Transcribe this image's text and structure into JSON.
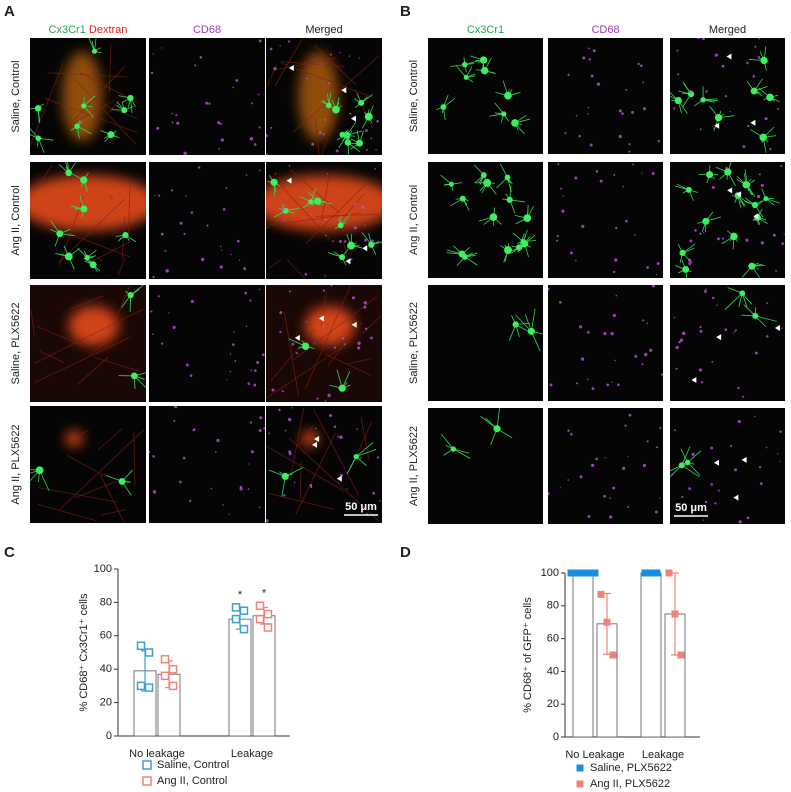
{
  "panels": [
    {
      "label": "A",
      "columns": [
        [
          {
            "text": "Cx3Cr1",
            "color": "#1fa84a"
          },
          {
            "text": "Dextran",
            "color": "#e0201c"
          }
        ],
        [
          {
            "text": "CD68",
            "color": "#9b3fbf"
          }
        ],
        [
          {
            "text": "Merged",
            "color": "#222222"
          }
        ]
      ],
      "rows": [
        "Saline, Control",
        "Ang II, Control",
        "Saline, PLX5622",
        "Ang II, PLX5622"
      ],
      "scale_bar": "50 μm"
    },
    {
      "label": "B",
      "columns": [
        [
          {
            "text": "Cx3Cr1",
            "color": "#1fa84a"
          }
        ],
        [
          {
            "text": "CD68",
            "color": "#9b3fbf"
          }
        ],
        [
          {
            "text": "Merged",
            "color": "#222222"
          }
        ]
      ],
      "rows": [
        "Saline, Control",
        "Ang II, Control",
        "Saline, PLX5622",
        "Ang II, PLX5622"
      ],
      "scale_bar": "50 μm"
    }
  ],
  "chart_data": [
    {
      "label": "C",
      "type": "bar",
      "ylabel": "% CD68⁺ Cx3Cr1⁺ cells",
      "categories": [
        "No leakage",
        "Leakage"
      ],
      "ylim": [
        0,
        100
      ],
      "yticks": [
        0,
        20,
        40,
        60,
        80,
        100
      ],
      "annotations": [
        {
          "text": "*",
          "category": 1,
          "series": 0
        },
        {
          "text": "*",
          "category": 1,
          "series": 1
        }
      ],
      "series": [
        {
          "name": "Saline, Control",
          "color": "#3a9fd6",
          "marker": "open",
          "values": [
            39,
            70
          ],
          "errors": [
            12,
            6
          ],
          "points": [
            [
              54,
              50,
              30,
              29
            ],
            [
              77,
              75,
              70,
              64
            ]
          ]
        },
        {
          "name": "Ang II, Control",
          "color": "#ef8379",
          "marker": "open",
          "values": [
            37,
            72
          ],
          "errors": [
            8,
            5
          ],
          "points": [
            [
              46,
              40,
              36,
              30
            ],
            [
              78,
              73,
              70,
              65
            ]
          ]
        }
      ]
    },
    {
      "label": "D",
      "type": "bar",
      "ylabel": "% CD68⁺ of GFP⁺ cells",
      "categories": [
        "No Leakage",
        "Leakage"
      ],
      "ylim": [
        0,
        100
      ],
      "yticks": [
        0,
        20,
        40,
        60,
        80,
        100
      ],
      "series": [
        {
          "name": "Saline, PLX5622",
          "color": "#1a8fe0",
          "marker": "filled",
          "values": [
            100,
            100
          ],
          "errors": [
            0,
            0
          ],
          "points": [
            [
              100,
              100,
              100,
              100,
              100
            ],
            [
              100,
              100,
              100
            ]
          ]
        },
        {
          "name": "Ang II, PLX5622",
          "color": "#ef8379",
          "marker": "filled",
          "values": [
            69,
            75
          ],
          "errors": [
            18.5,
            25
          ],
          "points": [
            [
              87,
              70,
              50
            ],
            [
              100,
              75,
              50
            ]
          ]
        }
      ]
    }
  ]
}
